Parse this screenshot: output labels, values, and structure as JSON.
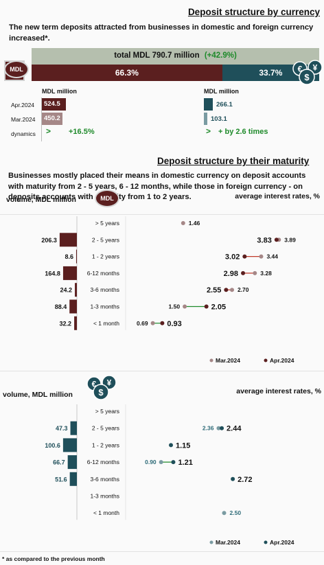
{
  "colors": {
    "mdl": "#5b1f1f",
    "mdl_light": "#a58787",
    "fx": "#1f4f5a",
    "fx_light": "#7a9ba2",
    "total_bg": "#b5bfae",
    "green": "#1e8a2a"
  },
  "section1": {
    "title": "Deposit structure  by currency",
    "intro": "The new term deposits attracted from businesses in domestic and foreign currency increased*.",
    "total_text": "total MDL 790.7 million",
    "total_change": "(+42.9%)",
    "mdl_share_label": "66.3%",
    "fx_share_label": "33.7%",
    "mdl_share": 66.3,
    "mdl_badge": "MDL",
    "fx_icon": "euro-dollar-yen-coins-icon",
    "unit_left": "MDL million",
    "unit_right": "MDL million",
    "row_labels": [
      "Apr.2024",
      "Mar.2024",
      "dynamics"
    ],
    "mdl_apr": "524.5",
    "mdl_mar": "450.2",
    "fx_apr": "266.1",
    "fx_mar": "103.1",
    "mdl_dynamics": "+16.5%",
    "fx_dynamics": "+ by 2.6 times"
  },
  "section2": {
    "title": "Deposit structure by their maturity",
    "intro": "Businesses  mostly placed their means in domestic currency on deposit accounts with maturity from 2 - 5 years, 6 - 12 months, while those in foreign currency - on deposits accounts with maturity from 1 to 2 years."
  },
  "panel_mdl": {
    "volume_label": "volume, MDL million",
    "rates_label": "average interest rates, %",
    "badge": "MDL",
    "legend_mar": "Mar.2024",
    "legend_apr": "Apr.2024"
  },
  "panel_fx": {
    "volume_label": "volume, MDL million",
    "rates_label": "average interest rates, %",
    "legend_mar": "Mar.2024",
    "legend_apr": "Apr.2024"
  },
  "footnote": "* as compared to the previous month",
  "chart_data": [
    {
      "type": "bar",
      "title": "Deposit structure  by currency",
      "categories": [
        "Apr.2024",
        "Mar.2024"
      ],
      "series": [
        {
          "name": "MDL",
          "values": [
            524.5,
            450.2
          ]
        },
        {
          "name": "foreign currency",
          "values": [
            266.1,
            103.1
          ]
        }
      ],
      "unit": "MDL million",
      "total": 790.7,
      "total_change_pct": 42.9,
      "shares_pct": {
        "MDL": 66.3,
        "foreign currency": 33.7
      }
    },
    {
      "type": "bar",
      "title": "volume, MDL million",
      "orientation": "horizontal",
      "categories": [
        "> 5 years",
        "2 - 5 years",
        "1 - 2 years",
        "6-12 months",
        "3-6 months",
        "1-3 months",
        "< 1 month"
      ],
      "values": [
        null,
        206.3,
        8.6,
        164.8,
        24.2,
        88.4,
        32.2
      ],
      "value_labels": [
        "",
        "206.3",
        "8.6",
        "164.8",
        "24.2",
        "88.4",
        "32.2"
      ],
      "bar_color": "#5b1f1f"
    },
    {
      "type": "scatter",
      "title": "average interest rates, %",
      "categories": [
        "> 5 years",
        "2 - 5 years",
        "1 - 2 years",
        "6-12 months",
        "3-6 months",
        "1-3 months",
        "< 1 month"
      ],
      "series": [
        {
          "name": "Mar.2024",
          "values": [
            1.46,
            3.89,
            3.44,
            3.28,
            2.7,
            1.5,
            0.69
          ]
        },
        {
          "name": "Apr.2024",
          "values": [
            null,
            3.83,
            3.02,
            2.98,
            2.55,
            2.05,
            0.93
          ]
        }
      ],
      "mar_labels": [
        "1.46",
        "3.89",
        "3.44",
        "3.28",
        "2.70",
        "1.50",
        "0.69"
      ],
      "apr_labels": [
        "",
        "3.83",
        "3.02",
        "2.98",
        "2.55",
        "2.05",
        "0.93"
      ],
      "mar_color": "#a58787",
      "apr_color": "#5b1f1f",
      "xlim": [
        0,
        4.6
      ]
    },
    {
      "type": "bar",
      "title": "volume, MDL million",
      "orientation": "horizontal",
      "categories": [
        "> 5 years",
        "2 - 5 years",
        "1 - 2 years",
        "6-12 months",
        "3-6 months",
        "1-3 months",
        "< 1 month"
      ],
      "values": [
        null,
        47.3,
        100.6,
        66.7,
        51.6,
        null,
        null
      ],
      "value_labels": [
        "",
        "47.3",
        "100.6",
        "66.7",
        "51.6",
        "",
        ""
      ],
      "bar_color": "#1f4f5a"
    },
    {
      "type": "scatter",
      "title": "average interest rates, %",
      "categories": [
        "> 5 years",
        "2 - 5 years",
        "1 - 2 years",
        "6-12 months",
        "3-6 months",
        "1-3 months",
        "< 1 month"
      ],
      "series": [
        {
          "name": "Mar.2024",
          "values": [
            null,
            2.36,
            null,
            0.9,
            null,
            null,
            2.5
          ]
        },
        {
          "name": "Apr.2024",
          "values": [
            null,
            2.44,
            1.15,
            1.21,
            2.72,
            null,
            null
          ]
        }
      ],
      "mar_labels": [
        "",
        "2.36",
        "",
        "0.90",
        "",
        "",
        "2.50"
      ],
      "apr_labels": [
        "",
        "2.44",
        "1.15",
        "1.21",
        "2.72",
        "",
        ""
      ],
      "mar_color": "#7a9ba2",
      "apr_color": "#1f4f5a",
      "xlim": [
        0,
        4.6
      ]
    }
  ]
}
